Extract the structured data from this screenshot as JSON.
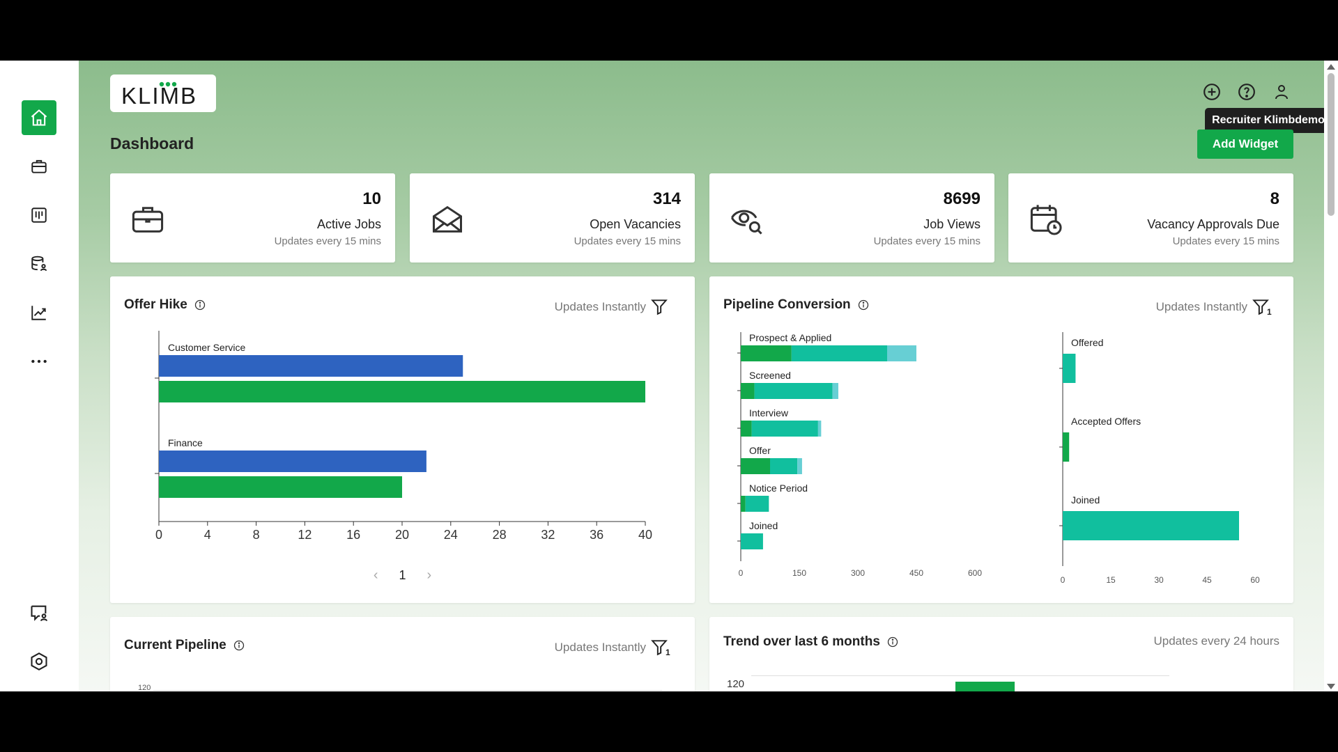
{
  "sidebar": {
    "items": [
      {
        "name": "home",
        "icon": "home-icon",
        "active": true
      },
      {
        "name": "jobs",
        "icon": "briefcase-icon"
      },
      {
        "name": "board",
        "icon": "kanban-icon"
      },
      {
        "name": "database",
        "icon": "database-user-icon"
      },
      {
        "name": "analytics",
        "icon": "trend-chart-icon"
      },
      {
        "name": "more",
        "icon": "more-dots-icon"
      }
    ],
    "bottom_items": [
      {
        "name": "chat",
        "icon": "chat-user-icon"
      },
      {
        "name": "settings",
        "icon": "settings-hex-icon"
      }
    ]
  },
  "header": {
    "logo_text": "KLIMB",
    "page_title": "Dashboard",
    "tooltip": "Recruiter Klimbdemo",
    "add_widget_label": "Add Widget",
    "icons": [
      "add-circle-icon",
      "help-circle-icon",
      "user-icon"
    ]
  },
  "colors": {
    "brand_green": "#12a84a",
    "blue": "#2e63c0",
    "teal": "#11bf9e",
    "light_teal": "#67cfd4",
    "dark": "#1f1f1f"
  },
  "stats": [
    {
      "value": "10",
      "label": "Active Jobs",
      "sub": "Updates every 15 mins",
      "icon": "briefcase-icon"
    },
    {
      "value": "314",
      "label": "Open Vacancies",
      "sub": "Updates every 15 mins",
      "icon": "envelope-icon"
    },
    {
      "value": "8699",
      "label": "Job Views",
      "sub": "Updates every 15 mins",
      "icon": "eye-search-icon"
    },
    {
      "value": "8",
      "label": "Vacancy Approvals Due",
      "sub": "Updates every 15 mins",
      "icon": "calendar-clock-icon"
    }
  ],
  "widgets": {
    "offer_hike": {
      "title": "Offer Hike",
      "update": "Updates Instantly",
      "page": "1"
    },
    "pipeline_conversion": {
      "title": "Pipeline Conversion",
      "update": "Updates Instantly",
      "filter_count": "1"
    },
    "current_pipeline": {
      "title": "Current Pipeline",
      "update": "Updates Instantly",
      "filter_count": "1",
      "first_tick": "120"
    },
    "trend": {
      "title": "Trend over last 6 months",
      "update": "Updates every 24 hours",
      "first_tick": "120"
    }
  },
  "chart_data": [
    {
      "type": "bar",
      "orientation": "horizontal",
      "categories": [
        "Customer Service",
        "Finance"
      ],
      "series": [
        {
          "values": [
            25,
            22
          ],
          "color": "#2e63c0"
        },
        {
          "values": [
            40,
            20
          ],
          "color": "#12a84a"
        }
      ],
      "xlim": [
        0,
        40
      ],
      "xticks": [
        "0",
        "4",
        "8",
        "12",
        "16",
        "20",
        "24",
        "28",
        "32",
        "36",
        "40"
      ]
    },
    {
      "type": "bar",
      "orientation": "horizontal",
      "stacked": true,
      "categories": [
        "Prospect & Applied",
        "Screened",
        "Interview",
        "Offer",
        "Notice Period",
        "Joined"
      ],
      "series": [
        {
          "values": [
            130,
            35,
            28,
            75,
            12,
            0
          ],
          "color": "#12a84a"
        },
        {
          "values": [
            245,
            200,
            170,
            70,
            60,
            57
          ],
          "color": "#11bf9e"
        },
        {
          "values": [
            75,
            15,
            8,
            12,
            0,
            0
          ],
          "color": "#67cfd4"
        }
      ],
      "xlim": [
        0,
        600
      ],
      "xticks": [
        "0",
        "150",
        "300",
        "450",
        "600"
      ]
    },
    {
      "type": "bar",
      "orientation": "horizontal",
      "categories": [
        "Offered",
        "Accepted Offers",
        "Joined"
      ],
      "values": [
        4,
        2,
        55
      ],
      "colors": [
        "#11bf9e",
        "#12a84a",
        "#11bf9e"
      ],
      "xlim": [
        0,
        60
      ],
      "xticks": [
        "0",
        "15",
        "30",
        "45",
        "60"
      ]
    }
  ]
}
